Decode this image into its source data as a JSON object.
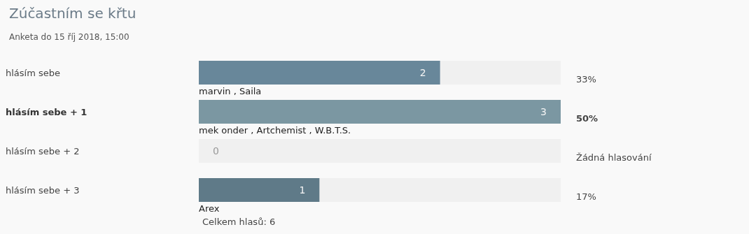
{
  "chart_data": {
    "type": "bar",
    "orientation": "horizontal",
    "title": "Zúčastním se křtu",
    "subtitle": "Anketa do 15 říj 2018, 15:00",
    "categories": [
      "hlásím sebe",
      "hlásím sebe + 1",
      "hlásím sebe + 2",
      "hlásím sebe + 3"
    ],
    "values": [
      2,
      3,
      0,
      1
    ],
    "colors": [
      "#68879a",
      "#7b97a2",
      "#7b97a2",
      "#5f7a88"
    ],
    "data_labels": true,
    "annotations": [
      "33%",
      "marvin , Saila",
      "50%",
      "mek onder , Artchemist , W.B.T.S.",
      "Žádná hlasování",
      "17%",
      "Arex",
      "Celkem hlasů: 6"
    ]
  }
}
